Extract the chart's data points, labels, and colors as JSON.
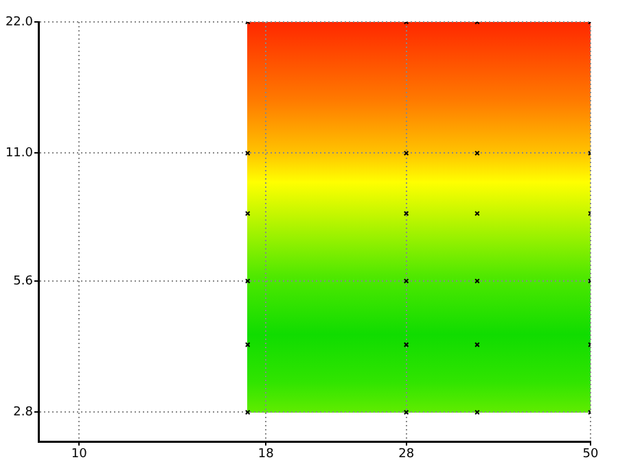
{
  "chart_data": {
    "type": "scatter",
    "x": [
      17,
      17,
      17,
      17,
      17,
      17,
      28,
      28,
      28,
      28,
      28,
      28,
      35,
      35,
      35,
      35,
      35,
      35,
      50,
      50,
      50,
      50,
      50,
      50
    ],
    "values": [
      2.8,
      4.0,
      5.6,
      8.0,
      11.0,
      22.0,
      2.8,
      4.0,
      5.6,
      8.0,
      11.0,
      22.0,
      2.8,
      4.0,
      5.6,
      8.0,
      11.0,
      22.0,
      2.8,
      4.0,
      5.6,
      8.0,
      11.0,
      22.0
    ],
    "color": "#000000",
    "marker": "cross",
    "log": "xy",
    "grid": true,
    "xlim": [
      8.8,
      50
    ],
    "ylim": [
      2.4,
      22
    ],
    "xticks": [
      10,
      18,
      28,
      50
    ],
    "yticks": [
      {
        "value": 2.8,
        "label": "2.8"
      },
      {
        "value": 5.6,
        "label": "5.6"
      },
      {
        "value": 11,
        "label": "11.0"
      },
      {
        "value": 22,
        "label": "22.0"
      }
    ]
  }
}
